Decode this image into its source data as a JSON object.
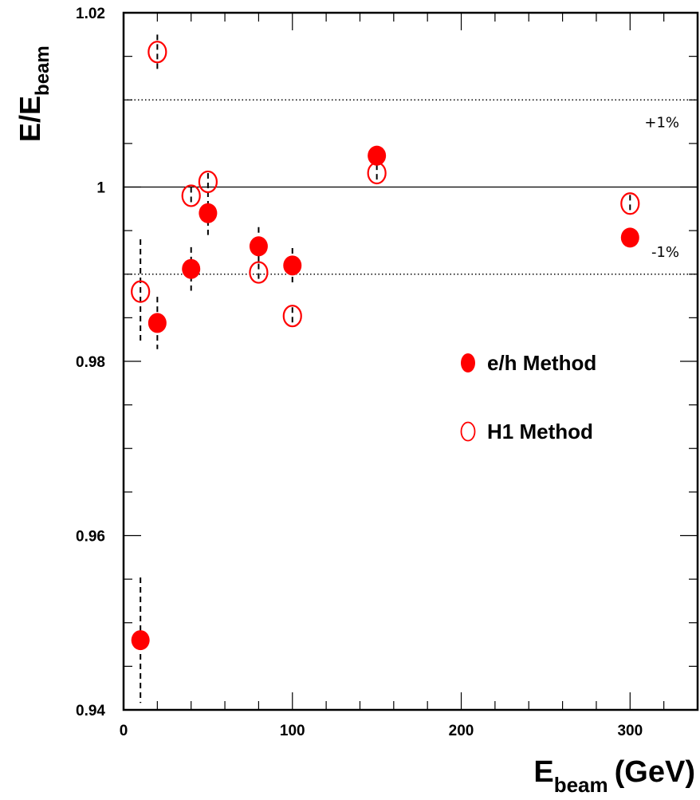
{
  "chart_data": {
    "type": "scatter",
    "xlabel_main": "E",
    "xlabel_sub": "beam",
    "xlabel_unit": "(GeV)",
    "ylabel_main": "E/E",
    "ylabel_sub": "beam",
    "xlim": [
      0,
      340
    ],
    "ylim": [
      0.94,
      1.02
    ],
    "x_ticks": [
      0,
      100,
      200,
      300
    ],
    "x_tick_labels": [
      "0",
      "100",
      "200",
      "300"
    ],
    "y_ticks": [
      0.94,
      0.96,
      0.98,
      1.0,
      1.02
    ],
    "y_tick_labels": [
      "0.94",
      "0.96",
      "0.98",
      "1",
      "1.02"
    ],
    "reference_lines": [
      {
        "y": 1.01,
        "style": "dotted",
        "label": "+1%"
      },
      {
        "y": 1.0,
        "style": "solid",
        "label": ""
      },
      {
        "y": 0.99,
        "style": "dotted",
        "label": "-1%"
      }
    ],
    "marker_color": "#ff0000",
    "series": [
      {
        "name": "e/h Method",
        "marker": "filled-circle",
        "x": [
          10,
          20,
          40,
          50,
          80,
          100,
          150,
          300
        ],
        "y": [
          0.948,
          0.9844,
          0.9906,
          0.997,
          0.9932,
          0.991,
          1.0036,
          0.9942
        ],
        "err": [
          0.0072,
          0.003,
          0.0025,
          0.0025,
          0.0022,
          0.002,
          0.001,
          0.0008
        ]
      },
      {
        "name": "H1 Method",
        "marker": "open-circle",
        "x": [
          10,
          20,
          40,
          50,
          80,
          100,
          150,
          300
        ],
        "y": [
          0.988,
          1.0155,
          0.999,
          1.0006,
          0.9902,
          0.9852,
          1.0016,
          0.9981
        ],
        "err": [
          0.006,
          0.002,
          0.001,
          0.001,
          0.001,
          0.001,
          0.001,
          0.001
        ]
      }
    ],
    "legend_position": "right-middle"
  }
}
